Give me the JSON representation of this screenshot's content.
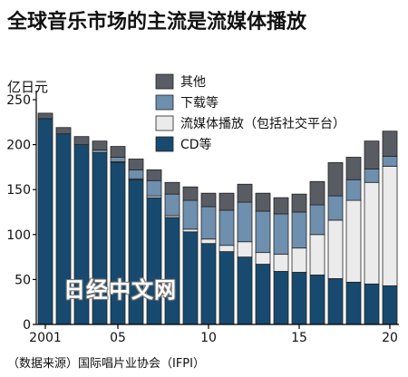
{
  "chart_data": {
    "type": "bar",
    "stacked": true,
    "title": "全球音乐市场的主流是流媒体播放",
    "ylabel": "亿日元",
    "ylim": [
      0,
      250
    ],
    "yticks": [
      0,
      50,
      100,
      150,
      200,
      250
    ],
    "grid": false,
    "legend_position": "top-right",
    "x": [
      2001,
      2002,
      2003,
      2004,
      2005,
      2006,
      2007,
      2008,
      2009,
      2010,
      2011,
      2012,
      2013,
      2014,
      2015,
      2016,
      2017,
      2018,
      2019,
      2020
    ],
    "xtick_labels": [
      {
        "x": 2001,
        "label": "2001"
      },
      {
        "x": 2005,
        "label": "05"
      },
      {
        "x": 2010,
        "label": "10"
      },
      {
        "x": 2015,
        "label": "15"
      },
      {
        "x": 2020,
        "label": "20"
      }
    ],
    "series": [
      {
        "name": "CD等",
        "color": "#174a6e",
        "values": [
          229,
          212,
          200,
          191,
          180,
          161,
          141,
          119,
          103,
          90,
          81,
          75,
          67,
          59,
          58,
          55,
          51,
          47,
          45,
          43
        ]
      },
      {
        "name": "流媒体播放（包括社交平台）",
        "color": "#ebebeb",
        "values": [
          0,
          0,
          0,
          0,
          1,
          1,
          2,
          2,
          3,
          5,
          7,
          17,
          13,
          19,
          27,
          45,
          65,
          91,
          113,
          133
        ]
      },
      {
        "name": "下载等",
        "color": "#6e8fae",
        "values": [
          0,
          0,
          0,
          3,
          5,
          10,
          17,
          24,
          32,
          36,
          39,
          44,
          46,
          45,
          40,
          33,
          27,
          23,
          15,
          11
        ]
      },
      {
        "name": "其他",
        "color": "#595c63",
        "values": [
          6,
          7,
          9,
          10,
          12,
          12,
          12,
          13,
          15,
          15,
          19,
          20,
          20,
          18,
          20,
          26,
          37,
          25,
          31,
          28
        ]
      }
    ],
    "legend_order": [
      "其他",
      "下载等",
      "流媒体播放（包括社交平台）",
      "CD等"
    ]
  },
  "source_note": "（数据来源）国际唱片业协会（IFPI）",
  "watermark": "日经中文网"
}
